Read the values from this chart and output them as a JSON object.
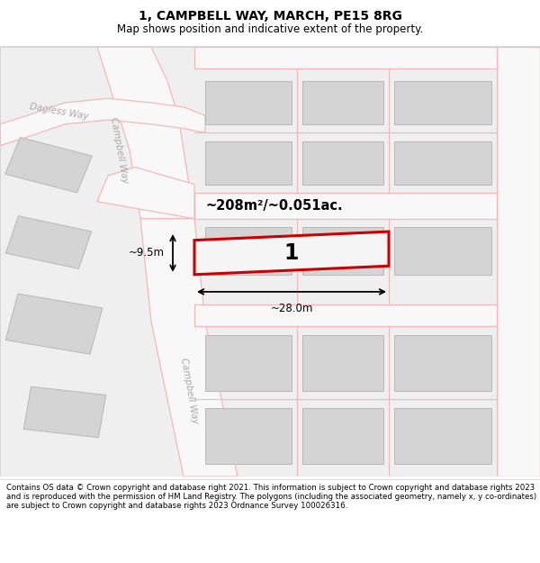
{
  "title": "1, CAMPBELL WAY, MARCH, PE15 8RG",
  "subtitle": "Map shows position and indicative extent of the property.",
  "footer": "Contains OS data © Crown copyright and database right 2021. This information is subject to Crown copyright and database rights 2023 and is reproduced with the permission of HM Land Registry. The polygons (including the associated geometry, namely x, y co-ordinates) are subject to Crown copyright and database rights 2023 Ordnance Survey 100026316.",
  "label_area": "~208m²/~0.051ac.",
  "label_width": "~28.0m",
  "label_height": "~9.5m",
  "label_number": "1",
  "street_label_dagless": "Dagless Way",
  "street_label_campbell_upper": "Campbell Way",
  "street_label_campbell_lower": "Campbell Way",
  "map_bg": "#f0f0f0",
  "road_color": "#f5b8b8",
  "building_fill": "#d4d4d4",
  "building_edge": "#b8b8b8",
  "plot_edge": "#cc0000",
  "title_fontsize": 10,
  "subtitle_fontsize": 8.5,
  "footer_fontsize": 6.2
}
